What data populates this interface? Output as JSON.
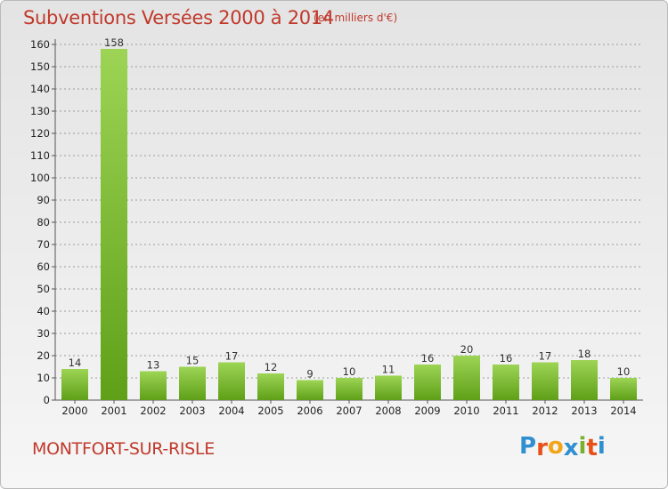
{
  "header": {
    "title": "Subventions Versées 2000 à 2014",
    "unit_note": "(en milliers d'€)"
  },
  "footer": {
    "location": "MONTFORT-SUR-RISLE",
    "logo_letters": [
      "P",
      "r",
      "o",
      "x",
      "i",
      "t",
      "i"
    ],
    "logo_colors": [
      "#2f8fd0",
      "#e8501a",
      "#f2a516",
      "#2f8fd0",
      "#7ab030",
      "#e8501a",
      "#2f8fd0"
    ]
  },
  "colors": {
    "title": "#c0392b",
    "bar_light": "#9dd455",
    "bar_dark": "#5fa018",
    "grid": "#9a9a9a"
  },
  "chart_data": {
    "type": "bar",
    "title": "Subventions Versées 2000 à 2014",
    "categories": [
      "2000",
      "2001",
      "2002",
      "2003",
      "2004",
      "2005",
      "2006",
      "2007",
      "2008",
      "2009",
      "2010",
      "2011",
      "2012",
      "2013",
      "2014"
    ],
    "values": [
      14,
      158,
      13,
      15,
      17,
      12,
      9,
      10,
      11,
      16,
      20,
      16,
      17,
      18,
      10
    ],
    "ylim": [
      0,
      160
    ],
    "yticks": [
      0,
      10,
      20,
      30,
      40,
      50,
      60,
      70,
      80,
      90,
      100,
      110,
      120,
      130,
      140,
      150,
      160
    ],
    "grid": true,
    "grid_style": "dashed horizontal",
    "data_labels": true,
    "legend": "none"
  }
}
